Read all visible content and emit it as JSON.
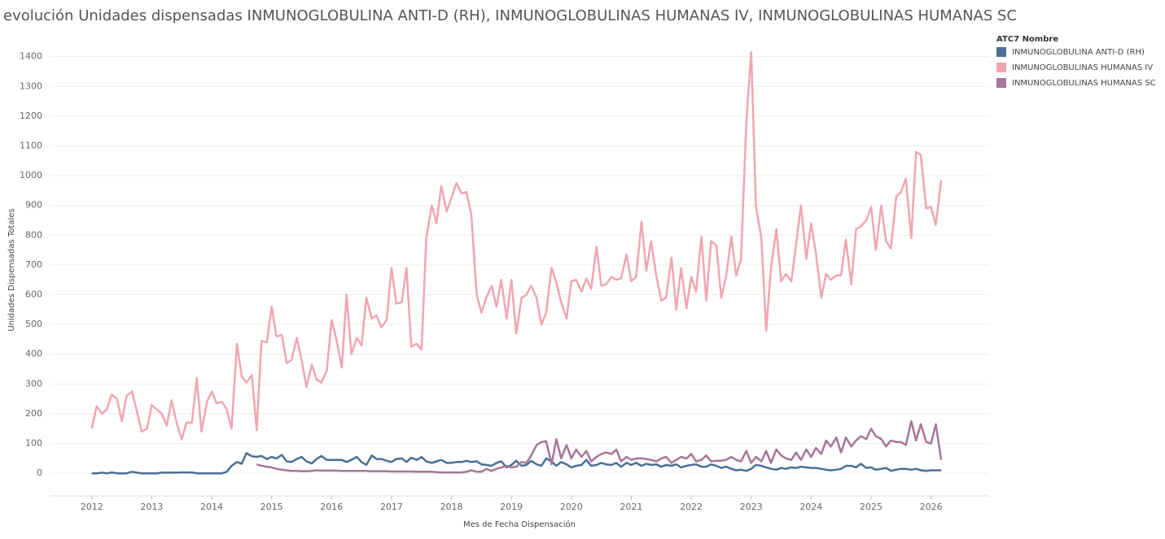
{
  "chart_data": {
    "type": "line",
    "title": "evolución Unidades dispensadas INMUNOGLOBULINA ANTI-D (RH), INMUNOGLOBULINAS HUMANAS IV, INMUNOGLOBULINAS HUMANAS SC",
    "x_label": "Mes de Fecha Dispensación",
    "y_label": "Unidades Dispensadas Totales",
    "legend_title": "ATC7 Nombre",
    "legend_position": "right",
    "grid": true,
    "xlim": [
      2011.31,
      2026.97
    ],
    "xticks": [
      2012,
      2013,
      2014,
      2015,
      2016,
      2017,
      2018,
      2019,
      2020,
      2021,
      2022,
      2023,
      2024,
      2025,
      2026
    ],
    "ylim": [
      -76,
      1440
    ],
    "yticks": [
      0,
      100,
      200,
      300,
      400,
      500,
      600,
      700,
      800,
      900,
      1000,
      1100,
      1200,
      1300,
      1400
    ],
    "x": [
      2012,
      2012.08,
      2012.17,
      2012.25,
      2012.33,
      2012.42,
      2012.5,
      2012.58,
      2012.67,
      2012.75,
      2012.83,
      2012.92,
      2013,
      2013.08,
      2013.17,
      2013.25,
      2013.33,
      2013.42,
      2013.5,
      2013.58,
      2013.67,
      2013.75,
      2013.83,
      2013.92,
      2014,
      2014.08,
      2014.17,
      2014.25,
      2014.33,
      2014.42,
      2014.5,
      2014.58,
      2014.67,
      2014.75,
      2014.83,
      2014.92,
      2015,
      2015.08,
      2015.17,
      2015.25,
      2015.33,
      2015.42,
      2015.5,
      2015.58,
      2015.67,
      2015.75,
      2015.83,
      2015.92,
      2016,
      2016.08,
      2016.17,
      2016.25,
      2016.33,
      2016.42,
      2016.5,
      2016.58,
      2016.67,
      2016.75,
      2016.83,
      2016.92,
      2017,
      2017.08,
      2017.17,
      2017.25,
      2017.33,
      2017.42,
      2017.5,
      2017.58,
      2017.67,
      2017.75,
      2017.83,
      2017.92,
      2018,
      2018.08,
      2018.17,
      2018.25,
      2018.33,
      2018.42,
      2018.5,
      2018.58,
      2018.67,
      2018.75,
      2018.83,
      2018.92,
      2019,
      2019.08,
      2019.17,
      2019.25,
      2019.33,
      2019.42,
      2019.5,
      2019.58,
      2019.67,
      2019.75,
      2019.83,
      2019.92,
      2020,
      2020.08,
      2020.17,
      2020.25,
      2020.33,
      2020.42,
      2020.5,
      2020.58,
      2020.67,
      2020.75,
      2020.83,
      2020.92,
      2021,
      2021.08,
      2021.17,
      2021.25,
      2021.33,
      2021.42,
      2021.5,
      2021.58,
      2021.67,
      2021.75,
      2021.83,
      2021.92,
      2022,
      2022.08,
      2022.17,
      2022.25,
      2022.33,
      2022.42,
      2022.5,
      2022.58,
      2022.67,
      2022.75,
      2022.83,
      2022.92,
      2023,
      2023.08,
      2023.17,
      2023.25,
      2023.33,
      2023.42,
      2023.5,
      2023.58,
      2023.67,
      2023.75,
      2023.83,
      2023.92,
      2024,
      2024.08,
      2024.17,
      2024.25,
      2024.33,
      2024.42,
      2024.5,
      2024.58,
      2024.67,
      2024.75,
      2024.83,
      2024.92,
      2025,
      2025.08,
      2025.17,
      2025.25,
      2025.33,
      2025.42,
      2025.5,
      2025.58,
      2025.67,
      2025.75,
      2025.83,
      2025.92,
      2026,
      2026.08,
      2026.17
    ],
    "series": [
      {
        "name": "INMUNOGLOBULINA ANTI-D (RH)",
        "color": "#4b6f96",
        "values": [
          0,
          0,
          2,
          0,
          3,
          0,
          0,
          0,
          5,
          2,
          0,
          0,
          0,
          0,
          2,
          2,
          2,
          2,
          3,
          3,
          3,
          0,
          0,
          0,
          0,
          0,
          0,
          5,
          25,
          38,
          32,
          68,
          57,
          55,
          58,
          48,
          55,
          50,
          62,
          40,
          38,
          48,
          55,
          40,
          33,
          48,
          58,
          45,
          45,
          45,
          45,
          38,
          45,
          55,
          38,
          28,
          60,
          48,
          48,
          42,
          38,
          48,
          50,
          38,
          52,
          45,
          55,
          40,
          35,
          40,
          45,
          35,
          35,
          38,
          38,
          42,
          38,
          40,
          30,
          28,
          25,
          35,
          40,
          20,
          28,
          42,
          25,
          28,
          42,
          30,
          25,
          50,
          40,
          25,
          38,
          30,
          20,
          25,
          28,
          45,
          25,
          28,
          35,
          30,
          28,
          35,
          22,
          35,
          28,
          35,
          25,
          32,
          28,
          30,
          22,
          28,
          25,
          30,
          20,
          25,
          28,
          30,
          22,
          22,
          30,
          25,
          18,
          22,
          15,
          10,
          12,
          8,
          15,
          28,
          25,
          20,
          15,
          12,
          18,
          15,
          20,
          18,
          22,
          20,
          18,
          18,
          15,
          12,
          10,
          12,
          15,
          25,
          25,
          20,
          32,
          18,
          20,
          12,
          15,
          18,
          8,
          12,
          15,
          15,
          12,
          15,
          10,
          8,
          10,
          10,
          10
        ]
      },
      {
        "name": "INMUNOGLOBULINAS HUMANAS IV",
        "color": "#f0a6b0",
        "values": [
          150,
          225,
          200,
          215,
          265,
          250,
          175,
          260,
          275,
          210,
          140,
          150,
          230,
          215,
          200,
          160,
          245,
          165,
          115,
          170,
          170,
          320,
          140,
          240,
          275,
          235,
          240,
          215,
          150,
          435,
          325,
          305,
          330,
          145,
          445,
          440,
          560,
          460,
          465,
          370,
          380,
          455,
          380,
          290,
          365,
          315,
          305,
          345,
          515,
          450,
          355,
          600,
          400,
          455,
          430,
          590,
          520,
          530,
          490,
          515,
          690,
          570,
          575,
          690,
          425,
          435,
          415,
          790,
          900,
          840,
          965,
          880,
          925,
          975,
          940,
          945,
          870,
          600,
          540,
          590,
          630,
          560,
          650,
          520,
          650,
          470,
          590,
          600,
          630,
          590,
          500,
          540,
          690,
          640,
          575,
          520,
          645,
          650,
          610,
          655,
          620,
          760,
          630,
          635,
          660,
          650,
          655,
          735,
          645,
          660,
          845,
          680,
          780,
          660,
          580,
          590,
          725,
          550,
          690,
          555,
          660,
          610,
          795,
          580,
          780,
          765,
          590,
          660,
          795,
          665,
          720,
          1185,
          1415,
          895,
          790,
          480,
          690,
          820,
          645,
          670,
          645,
          770,
          900,
          720,
          840,
          740,
          590,
          670,
          650,
          665,
          665,
          785,
          635,
          820,
          830,
          850,
          895,
          750,
          900,
          780,
          755,
          930,
          945,
          990,
          790,
          1080,
          1070,
          890,
          895,
          835,
          985
        ]
      },
      {
        "name": "INMUNOGLOBULINAS HUMANAS SC",
        "color": "#a7759a",
        "values": [
          null,
          null,
          null,
          null,
          null,
          null,
          null,
          null,
          null,
          null,
          null,
          null,
          null,
          null,
          null,
          null,
          null,
          null,
          null,
          null,
          null,
          null,
          null,
          null,
          null,
          null,
          null,
          null,
          null,
          null,
          null,
          null,
          null,
          30,
          25,
          22,
          20,
          15,
          12,
          10,
          8,
          8,
          7,
          7,
          8,
          10,
          9,
          9,
          9,
          9,
          8,
          8,
          8,
          8,
          8,
          8,
          7,
          7,
          7,
          7,
          6,
          6,
          6,
          6,
          6,
          5,
          5,
          5,
          5,
          4,
          3,
          3,
          3,
          3,
          3,
          5,
          10,
          5,
          5,
          15,
          8,
          15,
          20,
          25,
          20,
          22,
          38,
          35,
          60,
          95,
          105,
          108,
          30,
          115,
          50,
          95,
          50,
          80,
          55,
          75,
          40,
          55,
          65,
          70,
          65,
          80,
          40,
          55,
          45,
          50,
          50,
          48,
          45,
          40,
          50,
          55,
          35,
          45,
          55,
          50,
          65,
          40,
          45,
          60,
          40,
          42,
          42,
          45,
          55,
          45,
          40,
          75,
          35,
          55,
          40,
          75,
          35,
          80,
          60,
          50,
          45,
          70,
          45,
          80,
          55,
          85,
          65,
          110,
          90,
          120,
          70,
          120,
          90,
          110,
          125,
          115,
          150,
          125,
          115,
          90,
          110,
          105,
          105,
          95,
          175,
          110,
          165,
          105,
          100,
          165,
          45
        ]
      }
    ]
  }
}
